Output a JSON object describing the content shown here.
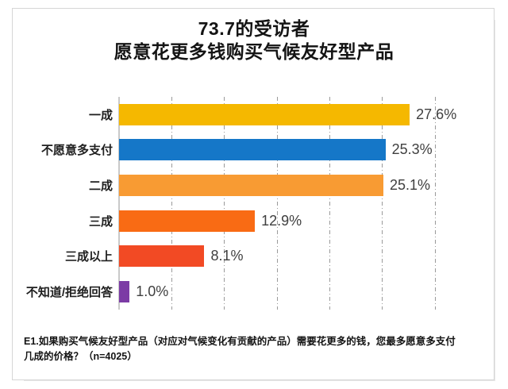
{
  "title": {
    "line1": "73.7的受访者",
    "line2": "愿意花更多钱购买气候友好型产品"
  },
  "chart_data": {
    "type": "bar",
    "orientation": "horizontal",
    "title": "73.7的受访者 愿意花更多钱购买气候友好型产品",
    "categories": [
      "一成",
      "不愿意多支付",
      "二成",
      "三成",
      "三成以上",
      "不知道/拒绝回答"
    ],
    "values": [
      27.6,
      25.3,
      25.1,
      12.9,
      8.1,
      1.0
    ],
    "value_labels": [
      "27.6%",
      "25.3%",
      "25.1%",
      "12.9%",
      "8.1%",
      "1.0%"
    ],
    "bar_colors": [
      "#F5B800",
      "#1577C8",
      "#F89B33",
      "#F96B14",
      "#F24A24",
      "#7C3BA5"
    ],
    "xlim": [
      0,
      30
    ],
    "gridline_interval": 5,
    "grid": true,
    "legend": false,
    "xlabel": "",
    "ylabel": ""
  },
  "footnote": {
    "line1": "E1.如果购买气候友好型产品（对应对气候变化有贡献的产品）需要花更多的钱，您最多愿意多支付",
    "line2": "几成的价格？（n=4025）"
  },
  "colors": {
    "grid": "#9A9A9A",
    "axis": "#C9C9C9",
    "value_label": "#3F3F3F",
    "category_label": "#202020",
    "title_text": "#141414",
    "frame_border": "#D6D6D6",
    "background": "#FFFFFF"
  }
}
